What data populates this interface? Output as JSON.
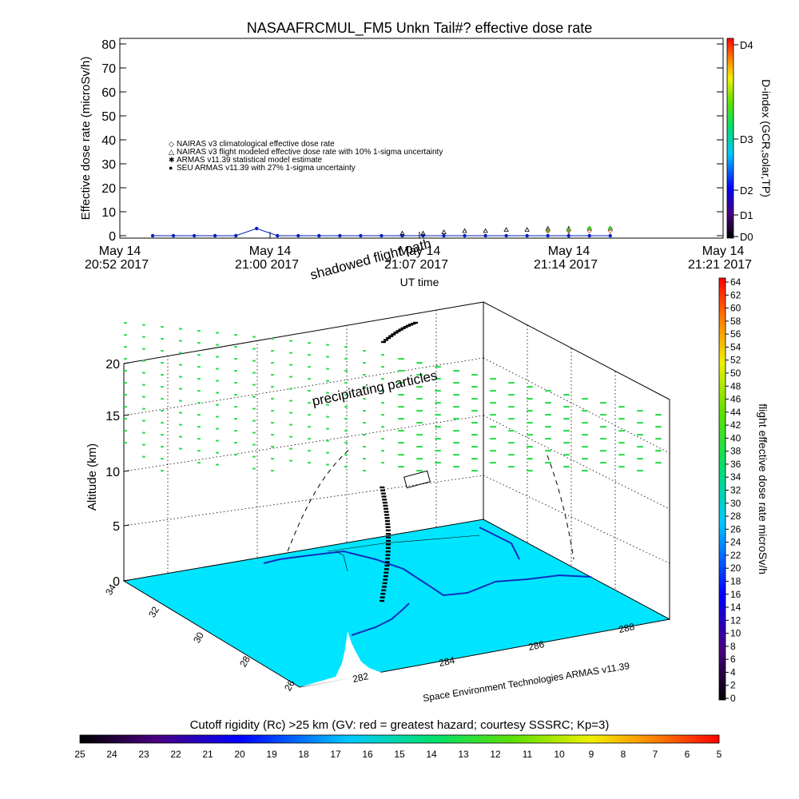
{
  "title": "NASAAFRCMUL_FM5 Unkn Tail#? effective dose rate",
  "top_chart": {
    "ylabel": "Effective dose rate (microSv/h)",
    "xlabel": "UT time",
    "right_label": "D-index (GCR,solar,TP)",
    "y_ticks": [
      "0",
      "10",
      "20",
      "30",
      "40",
      "50",
      "60",
      "70",
      "80"
    ],
    "x_ticks": [
      {
        "line1": "May 14",
        "line2": "20:52 2017"
      },
      {
        "line1": "May 14",
        "line2": "21:00 2017"
      },
      {
        "line1": "May 14",
        "line2": "21:07 2017"
      },
      {
        "line1": "May 14",
        "line2": "21:14 2017"
      },
      {
        "line1": "May 14",
        "line2": "21:21 2017"
      }
    ],
    "d_index_ticks": [
      "D4",
      "D3",
      "D2",
      "D1",
      "D0"
    ],
    "legend": [
      {
        "symbol": "◇",
        "color": "#e05030",
        "label": "NAIRAS v3 climatological effective dose rate"
      },
      {
        "symbol": "△",
        "color": "#000000",
        "label": "NAIRAS v3 flight modeled effective dose rate with 10% 1-sigma uncertainty"
      },
      {
        "symbol": "✱",
        "color": "#30d030",
        "label": "ARMAS v11.39 statistical model estimate"
      },
      {
        "symbol": "●",
        "color": "#0020c0",
        "label": "SEU ARMAS v11.39 with 27% 1-sigma uncertainty"
      }
    ]
  },
  "chart_data": {
    "type": "scatter",
    "title": "NASAAFRCMUL_FM5 Unkn Tail#? effective dose rate",
    "xlabel": "UT time",
    "ylabel": "Effective dose rate (microSv/h)",
    "ylim": [
      0,
      80
    ],
    "xlim_minutes": [
      0,
      29
    ],
    "series": [
      {
        "name": "SEU ARMAS v11.39 with 27% 1-sigma uncertainty",
        "x": [
          2,
          4,
          6,
          8,
          10,
          12,
          14,
          16,
          18,
          20,
          22,
          24,
          26,
          28,
          30,
          32,
          34,
          36,
          38,
          40,
          42,
          44,
          46
        ],
        "y": [
          0,
          0,
          0,
          0,
          0,
          3,
          0,
          0,
          0,
          0,
          0,
          0,
          0,
          0,
          0,
          0,
          0,
          0,
          0,
          0,
          0,
          0,
          0
        ]
      },
      {
        "name": "NAIRAS v3 flight modeled effective dose rate with 10% 1-sigma uncertainty",
        "x": [
          26,
          28,
          30,
          32,
          34,
          36,
          38,
          40,
          42,
          44,
          46
        ],
        "y": [
          1,
          1,
          1.5,
          2,
          2,
          2.5,
          2.5,
          3,
          3,
          3,
          3
        ]
      },
      {
        "name": "ARMAS v11.39 statistical model estimate",
        "x": [
          40,
          42,
          44,
          46
        ],
        "y": [
          2,
          2.5,
          3,
          3
        ]
      },
      {
        "name": "NAIRAS v3 climatological effective dose rate",
        "x": [
          40,
          42,
          44,
          46
        ],
        "y": [
          2,
          2,
          2,
          2
        ]
      }
    ]
  },
  "bottom_chart": {
    "altitude_label": "Altitude (km)",
    "altitude_ticks": [
      "0",
      "5",
      "10",
      "15",
      "20"
    ],
    "lat_ticks": [
      "34",
      "32",
      "30",
      "28",
      "26"
    ],
    "lon_ticks": [
      "282",
      "284",
      "286",
      "288"
    ],
    "annotation_shadowed": "shadowed flight path",
    "annotation_precip": "precipitating particles",
    "credit": "Space Environment Technologies ARMAS v11.39",
    "right_label": "flight effective dose rate microSv/h",
    "right_ticks": [
      "0",
      "2",
      "4",
      "6",
      "8",
      "10",
      "12",
      "14",
      "16",
      "18",
      "20",
      "22",
      "24",
      "26",
      "28",
      "30",
      "32",
      "34",
      "36",
      "38",
      "40",
      "42",
      "44",
      "46",
      "48",
      "50",
      "52",
      "54",
      "56",
      "58",
      "60",
      "62",
      "64"
    ]
  },
  "bottom_colorbar": {
    "label": "Cutoff rigidity (Rc) >25 km (GV: red = greatest hazard; courtesy SSSRC; Kp=3)",
    "ticks": [
      "25",
      "24",
      "23",
      "22",
      "21",
      "20",
      "19",
      "18",
      "17",
      "16",
      "15",
      "14",
      "13",
      "12",
      "11",
      "10",
      "9",
      "8",
      "7",
      "6",
      "5"
    ]
  },
  "colors": {
    "sea": "#00e5ff",
    "land": "#ffffff",
    "particles": "#33dd55",
    "seu_blue": "#0020c0"
  }
}
